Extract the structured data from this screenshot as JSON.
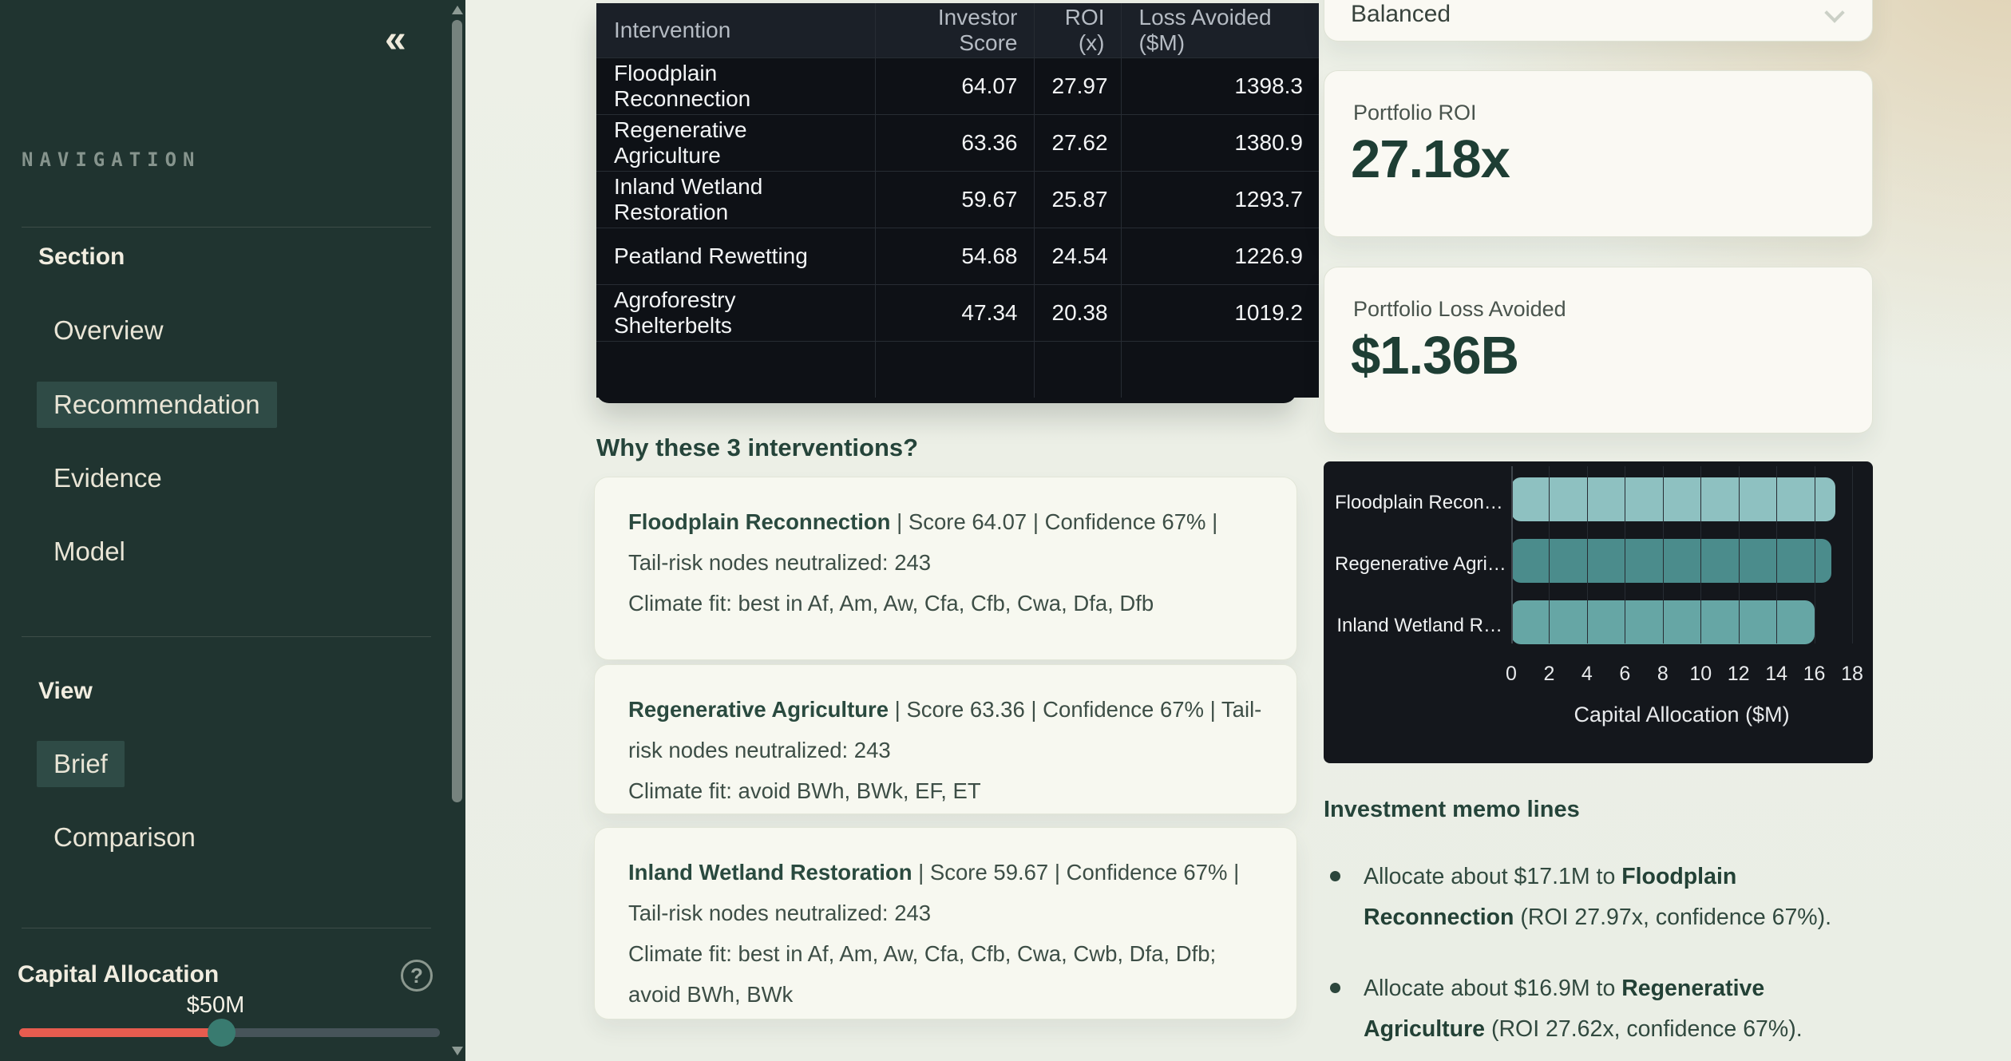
{
  "sidebar": {
    "collapse_icon": "«",
    "nav_label": "NAVIGATION",
    "section_group": {
      "title": "Section",
      "items": [
        {
          "label": "Overview",
          "active": false
        },
        {
          "label": "Recommendation",
          "active": true
        },
        {
          "label": "Evidence",
          "active": false
        },
        {
          "label": "Model",
          "active": false
        }
      ]
    },
    "view_group": {
      "title": "View",
      "items": [
        {
          "label": "Brief",
          "active": true
        },
        {
          "label": "Comparison",
          "active": false
        }
      ]
    },
    "capital_allocation": {
      "title": "Capital Allocation",
      "help_icon": "?",
      "value": "$50M",
      "slider": {
        "fill_percent": 48,
        "fill_color": "#e65c4f",
        "thumb_color": "#397b70"
      }
    }
  },
  "table": {
    "headers": [
      "Intervention",
      "Investor Score",
      "ROI (x)",
      "Loss Avoided ($M)"
    ],
    "rows": [
      {
        "name": "Floodplain Reconnection",
        "score": "64.07",
        "roi": "27.97",
        "loss": "1398.3"
      },
      {
        "name": "Regenerative Agriculture",
        "score": "63.36",
        "roi": "27.62",
        "loss": "1380.9"
      },
      {
        "name": "Inland Wetland Restoration",
        "score": "59.67",
        "roi": "25.87",
        "loss": "1293.7"
      },
      {
        "name": "Peatland Rewetting",
        "score": "54.68",
        "roi": "24.54",
        "loss": "1226.9"
      },
      {
        "name": "Agroforestry Shelterbelts",
        "score": "47.34",
        "roi": "20.38",
        "loss": "1019.2"
      }
    ]
  },
  "why": {
    "heading": "Why these 3 interventions?",
    "cards": [
      {
        "name": "Floodplain Reconnection",
        "details": " | Score 64.07 | Confidence 67% | Tail-risk nodes neutralized: 243",
        "climate": "Climate fit: best in Af, Am, Aw, Cfa, Cfb, Cwa, Dfa, Dfb"
      },
      {
        "name": "Regenerative Agriculture",
        "details": " | Score 63.36 | Confidence 67% | Tail-risk nodes neutralized: 243",
        "climate": "Climate fit: avoid BWh, BWk, EF, ET"
      },
      {
        "name": "Inland Wetland Restoration",
        "details": " | Score 59.67 | Confidence 67% | Tail-risk nodes neutralized: 243",
        "climate": "Climate fit: best in Af, Am, Aw, Cfa, Cfb, Cwa, Cwb, Dfa, Dfb; avoid BWh, BWk"
      }
    ]
  },
  "panel": {
    "profile_value": "Balanced",
    "kpis": [
      {
        "label": "Portfolio ROI",
        "value": "27.18x"
      },
      {
        "label": "Portfolio Loss Avoided",
        "value": "$1.36B"
      }
    ],
    "memo": {
      "heading": "Investment memo lines",
      "bullets": [
        {
          "pre": "Allocate about $17.1M to ",
          "name": "Floodplain Reconnection",
          "post": " (ROI 27.97x, confidence 67%)."
        },
        {
          "pre": "Allocate about $16.9M to ",
          "name": "Regenerative Agriculture",
          "post": " (ROI 27.62x, confidence 67%)."
        }
      ]
    }
  },
  "chart_data": {
    "type": "bar",
    "orientation": "horizontal",
    "title": "",
    "categories": [
      "Floodplain Recon…",
      "Regenerative Agri…",
      "Inland Wetland R…"
    ],
    "values": [
      17.1,
      16.9,
      16.0
    ],
    "bar_colors": [
      "#8ec1c1",
      "#4b8c8c",
      "#66a6a5"
    ],
    "xlabel": "Capital Allocation ($M)",
    "xlim": [
      0,
      18
    ],
    "xticks": [
      0,
      2,
      4,
      6,
      8,
      10,
      12,
      14,
      16,
      18
    ],
    "grid": true,
    "background": "#14171c",
    "legend": false
  }
}
